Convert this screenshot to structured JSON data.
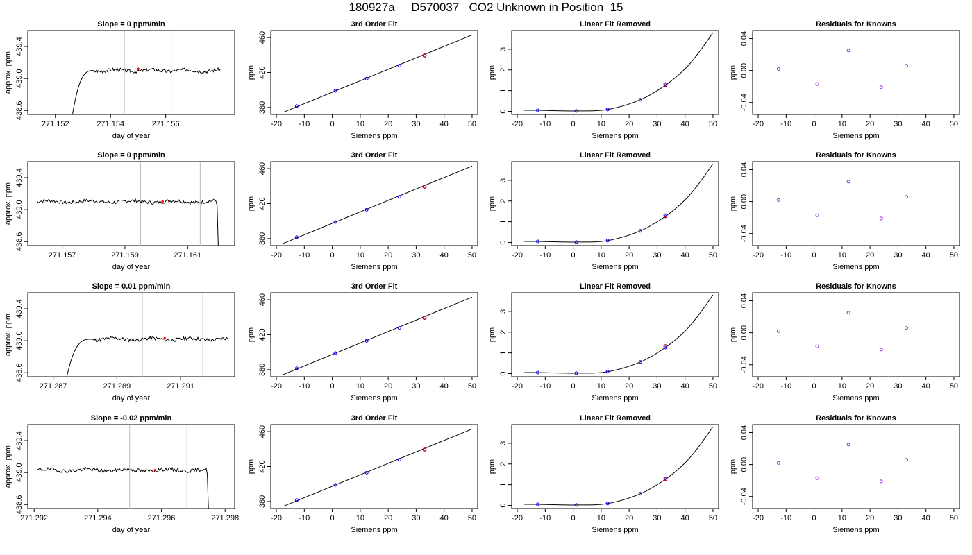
{
  "title": "180927a     D570037   CO2 Unknown in Position  15",
  "colors": {
    "known_point": "#0000ff",
    "unknown_point": "#ff0000",
    "residual_point": "#8a2be2",
    "line": "#000000",
    "window_line": "#bbbbbb"
  },
  "chart_data": [
    {
      "panel": "r1c1",
      "type": "line",
      "title": "Slope =  0  ppm/min",
      "xlabel": "day of year",
      "ylabel": "approx. ppm",
      "xlim": [
        271.151,
        271.1585
      ],
      "ylim": [
        438.55,
        439.6
      ],
      "xticks": [
        271.152,
        271.154,
        271.156
      ],
      "xtick_labels": [
        "271.152",
        "271.154",
        "271.156"
      ],
      "yticks": [
        438.6,
        439.0,
        439.4
      ],
      "ytick_labels": [
        "438.6",
        "439.0",
        "439.4"
      ],
      "vlines": [
        271.1545,
        271.1562
      ],
      "trace": {
        "start": 271.1526,
        "rise_end": 271.1534,
        "end": 271.158,
        "level": 439.1,
        "min": 438.5,
        "seed": 3
      },
      "markers": [
        {
          "x": 271.155,
          "y": 439.12
        }
      ]
    },
    {
      "panel": "r1c2",
      "type": "scatter",
      "title": "3rd Order Fit",
      "xlabel": "Siemens ppm",
      "ylabel": "ppm",
      "xlim": [
        -22,
        52
      ],
      "ylim": [
        372,
        468
      ],
      "xticks": [
        -20,
        -10,
        0,
        10,
        20,
        30,
        40,
        50
      ],
      "xtick_labels": [
        "-20",
        "-10",
        "0",
        "10",
        "20",
        "30",
        "40",
        "50"
      ],
      "yticks": [
        380,
        420,
        460
      ],
      "ytick_labels": [
        "380",
        "420",
        "460"
      ],
      "fit_line": {
        "x": [
          -17.5,
          50
        ],
        "y": [
          374.5,
          463
        ]
      },
      "points": [
        {
          "x": -12.7,
          "y": 381.6
        },
        {
          "x": 1.1,
          "y": 399.0
        },
        {
          "x": 12.3,
          "y": 413.0
        },
        {
          "x": 24.0,
          "y": 427.8
        },
        {
          "x": 33.0,
          "y": 439.4
        }
      ],
      "unknown": {
        "x": 33.0,
        "y": 439.4
      }
    },
    {
      "panel": "r1c3",
      "type": "scatter",
      "title": "Linear Fit Removed",
      "xlabel": "Siemens ppm",
      "ylabel": "ppm",
      "xlim": [
        -22,
        52
      ],
      "ylim": [
        -0.15,
        3.9
      ],
      "xticks": [
        -20,
        -10,
        0,
        10,
        20,
        30,
        40,
        50
      ],
      "xtick_labels": [
        "-20",
        "-10",
        "0",
        "10",
        "20",
        "30",
        "40",
        "50"
      ],
      "yticks": [
        0,
        1,
        2,
        3
      ],
      "ytick_labels": [
        "0",
        "1",
        "2",
        "3"
      ],
      "curve": {
        "x": [
          -17.5,
          -12.7,
          1.1,
          12.3,
          24.0,
          33.0,
          40,
          45,
          50
        ],
        "y": [
          0.05,
          0.05,
          0.02,
          0.09,
          0.56,
          1.26,
          2.05,
          2.85,
          3.8
        ]
      },
      "points": [
        {
          "x": -12.7,
          "y": 0.05
        },
        {
          "x": 1.1,
          "y": 0.02
        },
        {
          "x": 12.3,
          "y": 0.09
        },
        {
          "x": 24.0,
          "y": 0.56
        },
        {
          "x": 33.0,
          "y": 1.26
        }
      ],
      "unknown": {
        "x": 33.0,
        "y": 1.3
      }
    },
    {
      "panel": "r1c4",
      "type": "scatter",
      "title": "Residuals for Knowns",
      "xlabel": "Siemens ppm",
      "ylabel": "ppm",
      "xlim": [
        -22,
        52
      ],
      "ylim": [
        -0.055,
        0.05
      ],
      "xticks": [
        -20,
        -10,
        0,
        10,
        20,
        30,
        40,
        50
      ],
      "xtick_labels": [
        "-20",
        "-10",
        "0",
        "10",
        "20",
        "30",
        "40",
        "50"
      ],
      "yticks": [
        -0.04,
        0.0,
        0.04
      ],
      "ytick_labels": [
        "-0.04",
        "0.00",
        "0.04"
      ],
      "points": [
        {
          "x": -12.7,
          "y": 0.002
        },
        {
          "x": 1.1,
          "y": -0.017
        },
        {
          "x": 12.3,
          "y": 0.025
        },
        {
          "x": 24.0,
          "y": -0.021
        },
        {
          "x": 33.0,
          "y": 0.006
        }
      ]
    },
    {
      "panel": "r2c1",
      "type": "line",
      "title": "Slope =  0  ppm/min",
      "xlabel": "day of year",
      "ylabel": "approx. ppm",
      "xlim": [
        271.1559,
        271.1625
      ],
      "ylim": [
        438.55,
        439.6
      ],
      "xticks": [
        271.157,
        271.159,
        271.161
      ],
      "xtick_labels": [
        "271.157",
        "271.159",
        "271.161"
      ],
      "yticks": [
        438.6,
        439.0,
        439.4
      ],
      "ytick_labels": [
        "438.6",
        "439.0",
        "439.4"
      ],
      "vlines": [
        271.1595,
        271.1614
      ],
      "trace": {
        "start": 271.1562,
        "end": 271.1619,
        "level": 439.1,
        "min": 438.5,
        "drop": true,
        "seed": 7
      },
      "markers": [
        {
          "x": 271.1602,
          "y": 439.1
        }
      ]
    },
    {
      "panel": "r2c2",
      "type": "scatter",
      "title": "3rd Order Fit",
      "xlabel": "Siemens ppm",
      "ylabel": "ppm",
      "xlim": [
        -22,
        52
      ],
      "ylim": [
        372,
        468
      ],
      "xticks": [
        -20,
        -10,
        0,
        10,
        20,
        30,
        40,
        50
      ],
      "xtick_labels": [
        "-20",
        "-10",
        "0",
        "10",
        "20",
        "30",
        "40",
        "50"
      ],
      "yticks": [
        380,
        420,
        460
      ],
      "ytick_labels": [
        "380",
        "420",
        "460"
      ],
      "fit_line": {
        "x": [
          -17.5,
          50
        ],
        "y": [
          374.5,
          463
        ]
      },
      "points": [
        {
          "x": -12.7,
          "y": 381.6
        },
        {
          "x": 1.1,
          "y": 399.0
        },
        {
          "x": 12.3,
          "y": 413.0
        },
        {
          "x": 24.0,
          "y": 427.8
        },
        {
          "x": 33.0,
          "y": 439.4
        }
      ],
      "unknown": {
        "x": 33.0,
        "y": 439.4
      }
    },
    {
      "panel": "r2c3",
      "type": "scatter",
      "title": "Linear Fit Removed",
      "xlabel": "Siemens ppm",
      "ylabel": "ppm",
      "xlim": [
        -22,
        52
      ],
      "ylim": [
        -0.15,
        3.9
      ],
      "xticks": [
        -20,
        -10,
        0,
        10,
        20,
        30,
        40,
        50
      ],
      "xtick_labels": [
        "-20",
        "-10",
        "0",
        "10",
        "20",
        "30",
        "40",
        "50"
      ],
      "yticks": [
        0,
        1,
        2,
        3
      ],
      "ytick_labels": [
        "0",
        "1",
        "2",
        "3"
      ],
      "curve": {
        "x": [
          -17.5,
          -12.7,
          1.1,
          12.3,
          24.0,
          33.0,
          40,
          45,
          50
        ],
        "y": [
          0.05,
          0.05,
          0.02,
          0.09,
          0.56,
          1.26,
          2.05,
          2.85,
          3.8
        ]
      },
      "points": [
        {
          "x": -12.7,
          "y": 0.05
        },
        {
          "x": 1.1,
          "y": 0.02
        },
        {
          "x": 12.3,
          "y": 0.09
        },
        {
          "x": 24.0,
          "y": 0.56
        },
        {
          "x": 33.0,
          "y": 1.26
        }
      ],
      "unknown": {
        "x": 33.0,
        "y": 1.3
      }
    },
    {
      "panel": "r2c4",
      "type": "scatter",
      "title": "Residuals for Knowns",
      "xlabel": "Siemens ppm",
      "ylabel": "ppm",
      "xlim": [
        -22,
        52
      ],
      "ylim": [
        -0.055,
        0.05
      ],
      "xticks": [
        -20,
        -10,
        0,
        10,
        20,
        30,
        40,
        50
      ],
      "xtick_labels": [
        "-20",
        "-10",
        "0",
        "10",
        "20",
        "30",
        "40",
        "50"
      ],
      "yticks": [
        -0.04,
        0.0,
        0.04
      ],
      "ytick_labels": [
        "-0.04",
        "0.00",
        "0.04"
      ],
      "points": [
        {
          "x": -12.7,
          "y": 0.002
        },
        {
          "x": 1.1,
          "y": -0.017
        },
        {
          "x": 12.3,
          "y": 0.025
        },
        {
          "x": 24.0,
          "y": -0.021
        },
        {
          "x": 33.0,
          "y": 0.006
        }
      ]
    },
    {
      "panel": "r3c1",
      "type": "line",
      "title": "Slope =  0.01  ppm/min",
      "xlabel": "day of year",
      "ylabel": "approx. ppm",
      "xlim": [
        271.2862,
        271.2927
      ],
      "ylim": [
        438.55,
        439.6
      ],
      "xticks": [
        271.287,
        271.289,
        271.291
      ],
      "xtick_labels": [
        "271.287",
        "271.289",
        "271.291"
      ],
      "yticks": [
        438.6,
        439.0,
        439.4
      ],
      "ytick_labels": [
        "438.6",
        "439.0",
        "439.4"
      ],
      "vlines": [
        271.2898,
        271.2917
      ],
      "trace": {
        "start": 271.2874,
        "rise_end": 271.2882,
        "end": 271.2925,
        "level": 439.02,
        "min": 438.5,
        "seed": 11
      },
      "markers": [
        {
          "x": 271.2905,
          "y": 439.03
        }
      ]
    },
    {
      "panel": "r3c2",
      "type": "scatter",
      "title": "3rd Order Fit",
      "xlabel": "Siemens ppm",
      "ylabel": "ppm",
      "xlim": [
        -22,
        52
      ],
      "ylim": [
        372,
        468
      ],
      "xticks": [
        -20,
        -10,
        0,
        10,
        20,
        30,
        40,
        50
      ],
      "xtick_labels": [
        "-20",
        "-10",
        "0",
        "10",
        "20",
        "30",
        "40",
        "50"
      ],
      "yticks": [
        380,
        420,
        460
      ],
      "ytick_labels": [
        "380",
        "420",
        "460"
      ],
      "fit_line": {
        "x": [
          -17.5,
          50
        ],
        "y": [
          374.5,
          463
        ]
      },
      "points": [
        {
          "x": -12.7,
          "y": 381.6
        },
        {
          "x": 1.1,
          "y": 399.0
        },
        {
          "x": 12.3,
          "y": 413.0
        },
        {
          "x": 24.0,
          "y": 427.8
        },
        {
          "x": 33.0,
          "y": 439.4
        }
      ],
      "unknown": {
        "x": 33.0,
        "y": 439.3
      }
    },
    {
      "panel": "r3c3",
      "type": "scatter",
      "title": "Linear Fit Removed",
      "xlabel": "Siemens ppm",
      "ylabel": "ppm",
      "xlim": [
        -22,
        52
      ],
      "ylim": [
        -0.15,
        3.9
      ],
      "xticks": [
        -20,
        -10,
        0,
        10,
        20,
        30,
        40,
        50
      ],
      "xtick_labels": [
        "-20",
        "-10",
        "0",
        "10",
        "20",
        "30",
        "40",
        "50"
      ],
      "yticks": [
        0,
        1,
        2,
        3
      ],
      "ytick_labels": [
        "0",
        "1",
        "2",
        "3"
      ],
      "curve": {
        "x": [
          -17.5,
          -12.7,
          1.1,
          12.3,
          24.0,
          33.0,
          40,
          45,
          50
        ],
        "y": [
          0.05,
          0.05,
          0.02,
          0.09,
          0.56,
          1.26,
          2.05,
          2.85,
          3.8
        ]
      },
      "points": [
        {
          "x": -12.7,
          "y": 0.05
        },
        {
          "x": 1.1,
          "y": 0.02
        },
        {
          "x": 12.3,
          "y": 0.09
        },
        {
          "x": 24.0,
          "y": 0.56
        },
        {
          "x": 33.0,
          "y": 1.26
        }
      ],
      "unknown": {
        "x": 33.0,
        "y": 1.32
      }
    },
    {
      "panel": "r3c4",
      "type": "scatter",
      "title": "Residuals for Knowns",
      "xlabel": "Siemens ppm",
      "ylabel": "ppm",
      "xlim": [
        -22,
        52
      ],
      "ylim": [
        -0.055,
        0.05
      ],
      "xticks": [
        -20,
        -10,
        0,
        10,
        20,
        30,
        40,
        50
      ],
      "xtick_labels": [
        "-20",
        "-10",
        "0",
        "10",
        "20",
        "30",
        "40",
        "50"
      ],
      "yticks": [
        -0.04,
        0.0,
        0.04
      ],
      "ytick_labels": [
        "-0.04",
        "0.00",
        "0.04"
      ],
      "points": [
        {
          "x": -12.7,
          "y": 0.002
        },
        {
          "x": 1.1,
          "y": -0.017
        },
        {
          "x": 12.3,
          "y": 0.025
        },
        {
          "x": 24.0,
          "y": -0.021
        },
        {
          "x": 33.0,
          "y": 0.006
        }
      ]
    },
    {
      "panel": "r4c1",
      "type": "line",
      "title": "Slope =  -0.02  ppm/min",
      "xlabel": "day of year",
      "ylabel": "approx. ppm",
      "xlim": [
        271.2918,
        271.2983
      ],
      "ylim": [
        438.55,
        439.6
      ],
      "xticks": [
        271.292,
        271.294,
        271.296,
        271.298
      ],
      "xtick_labels": [
        "271.292",
        "271.294",
        "271.296",
        "271.298"
      ],
      "yticks": [
        438.6,
        439.0,
        439.4
      ],
      "ytick_labels": [
        "438.6",
        "439.0",
        "439.4"
      ],
      "vlines": [
        271.295,
        271.2968
      ],
      "trace": {
        "start": 271.2921,
        "end": 271.2974,
        "level": 439.03,
        "min": 438.5,
        "drop": true,
        "seed": 19
      },
      "markers": [
        {
          "x": 271.2958,
          "y": 439.03
        }
      ]
    },
    {
      "panel": "r4c2",
      "type": "scatter",
      "title": "3rd Order Fit",
      "xlabel": "Siemens ppm",
      "ylabel": "ppm",
      "xlim": [
        -22,
        52
      ],
      "ylim": [
        372,
        468
      ],
      "xticks": [
        -20,
        -10,
        0,
        10,
        20,
        30,
        40,
        50
      ],
      "xtick_labels": [
        "-20",
        "-10",
        "0",
        "10",
        "20",
        "30",
        "40",
        "50"
      ],
      "yticks": [
        380,
        420,
        460
      ],
      "ytick_labels": [
        "380",
        "420",
        "460"
      ],
      "fit_line": {
        "x": [
          -17.5,
          50
        ],
        "y": [
          374.5,
          463
        ]
      },
      "points": [
        {
          "x": -12.7,
          "y": 381.6
        },
        {
          "x": 1.1,
          "y": 399.0
        },
        {
          "x": 12.3,
          "y": 413.0
        },
        {
          "x": 24.0,
          "y": 427.8
        },
        {
          "x": 33.0,
          "y": 439.4
        }
      ],
      "unknown": {
        "x": 33.0,
        "y": 439.4
      }
    },
    {
      "panel": "r4c3",
      "type": "scatter",
      "title": "Linear Fit Removed",
      "xlabel": "Siemens ppm",
      "ylabel": "ppm",
      "xlim": [
        -22,
        52
      ],
      "ylim": [
        -0.15,
        3.9
      ],
      "xticks": [
        -20,
        -10,
        0,
        10,
        20,
        30,
        40,
        50
      ],
      "xtick_labels": [
        "-20",
        "-10",
        "0",
        "10",
        "20",
        "30",
        "40",
        "50"
      ],
      "yticks": [
        0,
        1,
        2,
        3
      ],
      "ytick_labels": [
        "0",
        "1",
        "2",
        "3"
      ],
      "curve": {
        "x": [
          -17.5,
          -12.7,
          1.1,
          12.3,
          24.0,
          33.0,
          40,
          45,
          50
        ],
        "y": [
          0.05,
          0.05,
          0.02,
          0.09,
          0.56,
          1.26,
          2.05,
          2.85,
          3.8
        ]
      },
      "points": [
        {
          "x": -12.7,
          "y": 0.05
        },
        {
          "x": 1.1,
          "y": 0.02
        },
        {
          "x": 12.3,
          "y": 0.09
        },
        {
          "x": 24.0,
          "y": 0.56
        },
        {
          "x": 33.0,
          "y": 1.26
        }
      ],
      "unknown": {
        "x": 33.0,
        "y": 1.29
      }
    },
    {
      "panel": "r4c4",
      "type": "scatter",
      "title": "Residuals for Knowns",
      "xlabel": "Siemens ppm",
      "ylabel": "ppm",
      "xlim": [
        -22,
        52
      ],
      "ylim": [
        -0.055,
        0.05
      ],
      "xticks": [
        -20,
        -10,
        0,
        10,
        20,
        30,
        40,
        50
      ],
      "xtick_labels": [
        "-20",
        "-10",
        "0",
        "10",
        "20",
        "30",
        "40",
        "50"
      ],
      "yticks": [
        -0.04,
        0.0,
        0.04
      ],
      "ytick_labels": [
        "-0.04",
        "0.00",
        "0.04"
      ],
      "points": [
        {
          "x": -12.7,
          "y": 0.002
        },
        {
          "x": 1.1,
          "y": -0.017
        },
        {
          "x": 12.3,
          "y": 0.025
        },
        {
          "x": 24.0,
          "y": -0.021
        },
        {
          "x": 33.0,
          "y": 0.006
        }
      ]
    }
  ]
}
